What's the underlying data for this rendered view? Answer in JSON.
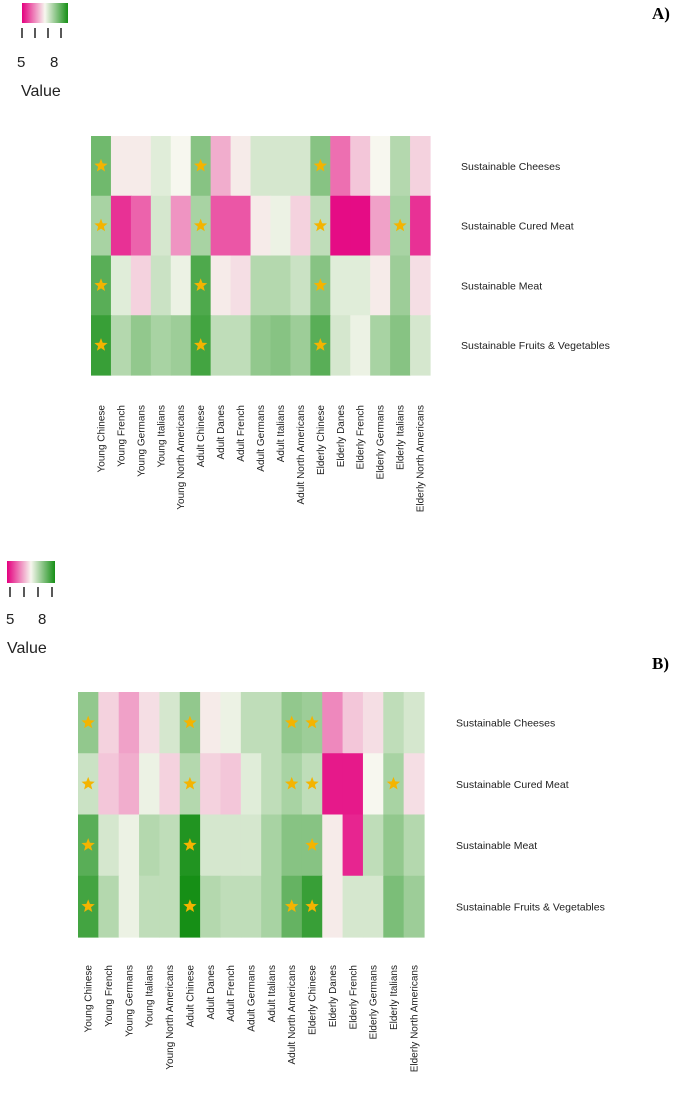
{
  "colors": {
    "low": "#e4007f",
    "mid": "#f7f7ef",
    "high": "#168f16",
    "star": "#f4b400"
  },
  "chart_data": [
    {
      "type": "heatmap",
      "panel": "A)",
      "legend": {
        "title": "Value",
        "ticks": [
          "5",
          "8"
        ],
        "min": 5,
        "max": 9
      },
      "rows": [
        "Sustainable Cheeses",
        "Sustainable Cured Meat",
        "Sustainable Meat",
        "Sustainable Fruits & Vegetables"
      ],
      "columns": [
        "Young Chinese",
        "Young French",
        "Young Germans",
        "Young Italians",
        "Young North Americans",
        "Adult Chinese",
        "Adult Danes",
        "Adult French",
        "Adult Germans",
        "Adult Italians",
        "Adult North Americans",
        "Elderly Chinese",
        "Elderly Danes",
        "Elderly French",
        "Elderly Germans",
        "Elderly Italians",
        "Elderly North Americans"
      ],
      "values": [
        [
          8.2,
          6.9,
          6.9,
          7.2,
          7.0,
          8.0,
          6.4,
          6.9,
          7.3,
          7.3,
          7.3,
          8.0,
          5.9,
          6.6,
          7.0,
          7.6,
          6.7
        ],
        [
          7.7,
          5.4,
          5.8,
          7.3,
          6.2,
          7.7,
          5.7,
          5.7,
          6.9,
          7.1,
          6.7,
          7.5,
          5.1,
          5.1,
          6.3,
          7.7,
          5.4
        ],
        [
          8.4,
          7.2,
          6.7,
          7.4,
          7.1,
          8.5,
          6.9,
          6.8,
          7.6,
          7.6,
          7.4,
          8.0,
          7.2,
          7.2,
          6.9,
          7.8,
          6.8
        ],
        [
          8.7,
          7.6,
          7.9,
          7.7,
          7.8,
          8.6,
          7.5,
          7.5,
          7.9,
          8.0,
          7.8,
          8.4,
          7.3,
          7.1,
          7.7,
          8.0,
          7.3
        ]
      ],
      "stars": [
        [
          1,
          0,
          0,
          0,
          0,
          1,
          0,
          0,
          0,
          0,
          0,
          1,
          0,
          0,
          0,
          0,
          0
        ],
        [
          1,
          0,
          0,
          0,
          0,
          1,
          0,
          0,
          0,
          0,
          0,
          1,
          0,
          0,
          0,
          1,
          0
        ],
        [
          1,
          0,
          0,
          0,
          0,
          1,
          0,
          0,
          0,
          0,
          0,
          1,
          0,
          0,
          0,
          0,
          0
        ],
        [
          1,
          0,
          0,
          0,
          0,
          1,
          0,
          0,
          0,
          0,
          0,
          1,
          0,
          0,
          0,
          0,
          0
        ]
      ]
    },
    {
      "type": "heatmap",
      "panel": "B)",
      "legend": {
        "title": "Value",
        "ticks": [
          "5",
          "8"
        ],
        "min": 5,
        "max": 9
      },
      "rows": [
        "Sustainable Cheeses",
        "Sustainable Cured Meat",
        "Sustainable Meat",
        "Sustainable Fruits & Vegetables"
      ],
      "columns": [
        "Young Chinese",
        "Young French",
        "Young Germans",
        "Young Italians",
        "Young North Americans",
        "Adult Chinese",
        "Adult Danes",
        "Adult French",
        "Adult Germans",
        "Adult Italians",
        "Adult North Americans",
        "Elderly Chinese",
        "Elderly Danes",
        "Elderly French",
        "Elderly Germans",
        "Elderly Italians",
        "Elderly North Americans"
      ],
      "values": [
        [
          7.9,
          6.7,
          6.3,
          6.8,
          7.3,
          7.9,
          6.9,
          7.1,
          7.5,
          7.5,
          7.9,
          7.8,
          6.1,
          6.6,
          6.8,
          7.5,
          7.3
        ],
        [
          7.4,
          6.6,
          6.4,
          7.1,
          6.7,
          7.6,
          6.7,
          6.6,
          7.2,
          7.5,
          7.7,
          7.5,
          5.2,
          5.2,
          7.0,
          7.7,
          6.8
        ],
        [
          8.4,
          7.3,
          7.1,
          7.6,
          7.5,
          8.9,
          7.3,
          7.3,
          7.3,
          7.7,
          8.0,
          8.0,
          6.9,
          5.3,
          7.5,
          7.9,
          7.6
        ],
        [
          8.6,
          7.6,
          7.1,
          7.5,
          7.5,
          9.0,
          7.6,
          7.5,
          7.5,
          7.7,
          8.3,
          8.7,
          6.9,
          7.3,
          7.3,
          8.1,
          7.8
        ]
      ],
      "stars": [
        [
          1,
          0,
          0,
          0,
          0,
          1,
          0,
          0,
          0,
          0,
          1,
          1,
          0,
          0,
          0,
          0,
          0
        ],
        [
          1,
          0,
          0,
          0,
          0,
          1,
          0,
          0,
          0,
          0,
          1,
          1,
          0,
          0,
          0,
          1,
          0
        ],
        [
          1,
          0,
          0,
          0,
          0,
          1,
          0,
          0,
          0,
          0,
          0,
          1,
          0,
          0,
          0,
          0,
          0
        ],
        [
          1,
          0,
          0,
          0,
          0,
          1,
          0,
          0,
          0,
          0,
          1,
          1,
          0,
          0,
          0,
          0,
          0
        ]
      ]
    }
  ]
}
